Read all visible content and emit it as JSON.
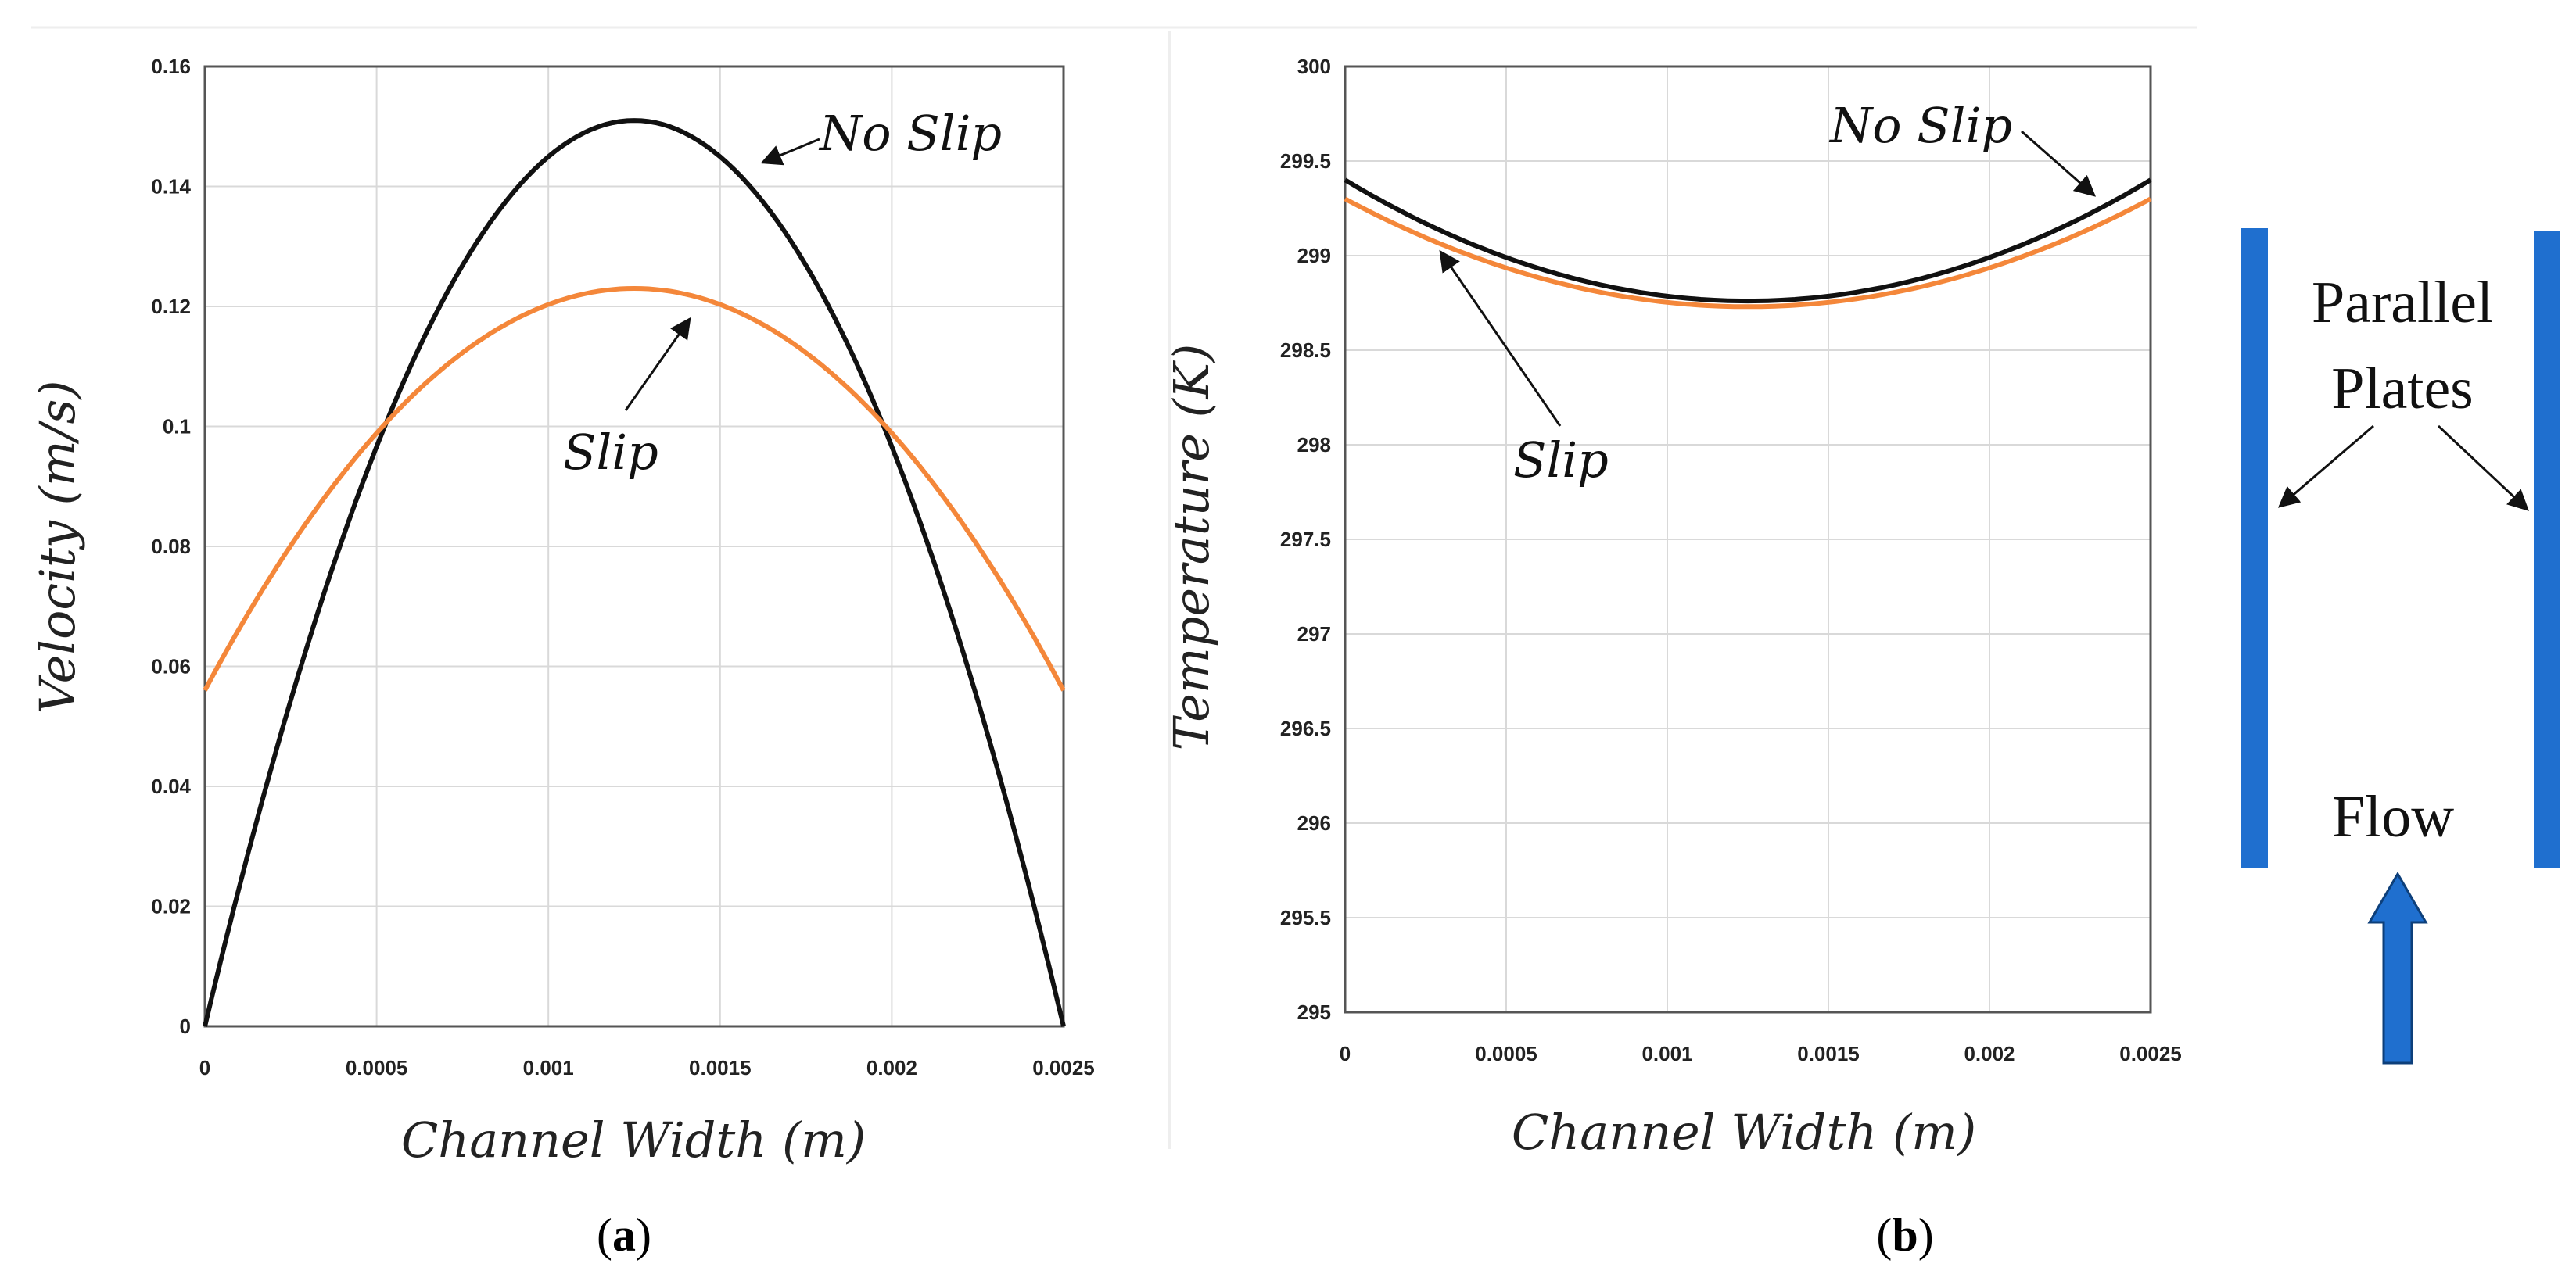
{
  "chart_data": [
    {
      "type": "line",
      "panel_label": "(a)",
      "caption_open": "(",
      "caption_letter": "a",
      "caption_close": ")",
      "xlabel": "Channel Width (m)",
      "ylabel": "Velocity (m/s)",
      "xlim": [
        0,
        0.0025
      ],
      "ylim": [
        0,
        0.16
      ],
      "xticks": [
        "0",
        "0.0005",
        "0.001",
        "0.0015",
        "0.002",
        "0.0025"
      ],
      "yticks": [
        "0",
        "0.02",
        "0.04",
        "0.06",
        "0.08",
        "0.1",
        "0.12",
        "0.14",
        "0.16"
      ],
      "grid": true,
      "series": [
        {
          "name": "No Slip",
          "color": "#111111",
          "x": [
            0,
            0.00025,
            0.0005,
            0.00075,
            0.001,
            0.00125,
            0.0015,
            0.00175,
            0.002,
            0.00225,
            0.0025
          ],
          "y": [
            0,
            0.0544,
            0.0968,
            0.127,
            0.145,
            0.151,
            0.145,
            0.127,
            0.0968,
            0.0544,
            0
          ]
        },
        {
          "name": "Slip",
          "color": "#f4873a",
          "x": [
            0,
            0.00025,
            0.0005,
            0.00075,
            0.001,
            0.00125,
            0.0015,
            0.00175,
            0.002,
            0.00225,
            0.0025
          ],
          "y": [
            0.056,
            0.0805,
            0.0992,
            0.1134,
            0.1199,
            0.123,
            0.1199,
            0.1134,
            0.0992,
            0.0805,
            0.056
          ]
        }
      ],
      "annotations": [
        "No Slip",
        "Slip"
      ]
    },
    {
      "type": "line",
      "panel_label": "(b)",
      "caption_open": "(",
      "caption_letter": "b",
      "caption_close": ")",
      "xlabel": "Channel Width (m)",
      "ylabel": "Temperature (K)",
      "xlim": [
        0,
        0.0025
      ],
      "ylim": [
        295,
        300
      ],
      "xticks": [
        "0",
        "0.0005",
        "0.001",
        "0.0015",
        "0.002",
        "0.0025"
      ],
      "yticks": [
        "295",
        "295.5",
        "296",
        "296.5",
        "297",
        "297.5",
        "298",
        "298.5",
        "299",
        "299.5",
        "300"
      ],
      "grid": true,
      "series": [
        {
          "name": "No Slip",
          "color": "#111111",
          "x": [
            0,
            0.00025,
            0.0005,
            0.00075,
            0.001,
            0.00125,
            0.0015,
            0.00175,
            0.002,
            0.00225,
            0.0025
          ],
          "y": [
            299.4,
            299.2,
            299.03,
            298.9,
            298.79,
            298.76,
            298.79,
            298.9,
            299.03,
            299.2,
            299.4
          ]
        },
        {
          "name": "Slip",
          "color": "#f4873a",
          "x": [
            0,
            0.00025,
            0.0005,
            0.00075,
            0.001,
            0.00125,
            0.0015,
            0.00175,
            0.002,
            0.00225,
            0.0025
          ],
          "y": [
            299.3,
            299.12,
            298.96,
            298.84,
            298.76,
            298.73,
            298.76,
            298.84,
            298.96,
            299.12,
            299.3
          ]
        }
      ],
      "annotations": [
        "No Slip",
        "Slip"
      ]
    }
  ],
  "schematic": {
    "label_line1": "Parallel",
    "label_line2": "Plates",
    "flow_label": "Flow",
    "plate_color": "#1f6fcf"
  }
}
